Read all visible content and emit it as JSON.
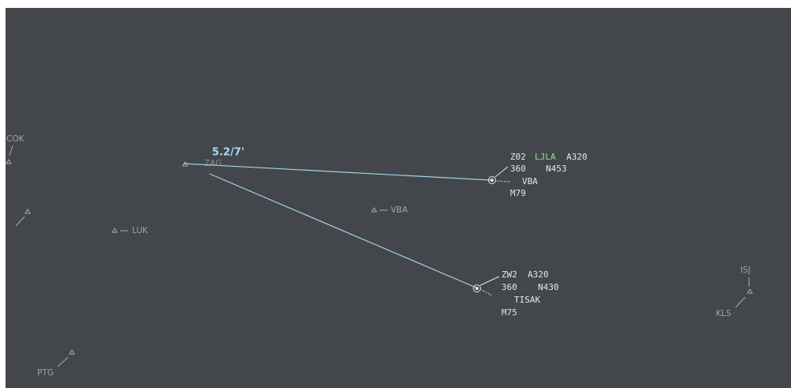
{
  "measure_label": "5.2/7'",
  "waypoints": [
    {
      "label": "COK"
    },
    {
      "label": "ZAG"
    },
    {
      "label": "LUK"
    },
    {
      "label": "VBA"
    },
    {
      "label": "ISJ"
    },
    {
      "label": "KLS"
    },
    {
      "label": "PTG"
    }
  ],
  "aircraft": [
    {
      "callsign": "Z02",
      "destination": "LJLA",
      "type": "A320",
      "altitude": "360",
      "route_info": "N453",
      "next_point": "VBA",
      "mach": "M79"
    },
    {
      "callsign": "ZW2",
      "type": "A320",
      "altitude": "360",
      "route_info": "N430",
      "next_point": "TISAK",
      "mach": "M75"
    }
  ]
}
